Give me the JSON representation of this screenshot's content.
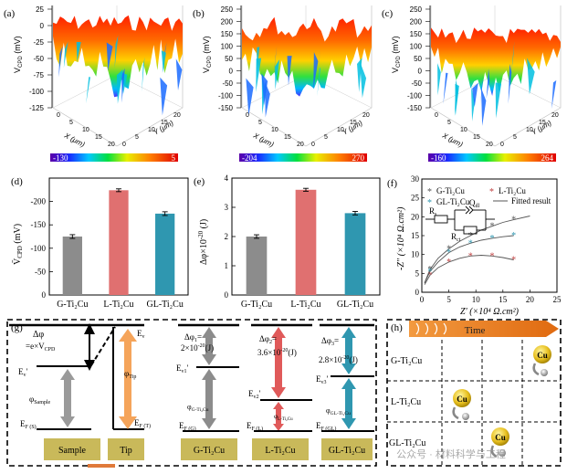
{
  "panels": {
    "a": {
      "label": "(a)",
      "zlabel": "V_CPD (mV)",
      "ticks": [
        "25",
        "0",
        "-25",
        "-50",
        "-75",
        "-100",
        "-125"
      ],
      "xlabel": "X (μm)",
      "ylabel": "Y (μm)",
      "xticks": [
        "0",
        "5",
        "10",
        "15",
        "20"
      ],
      "yticks": [
        "0",
        "5",
        "10",
        "15",
        "20"
      ],
      "cmin": "-130",
      "cmax": "5"
    },
    "b": {
      "label": "(b)",
      "zlabel": "V_CPD (mV)",
      "ticks": [
        "250",
        "200",
        "150",
        "100",
        "50",
        "0",
        "-50",
        "-100",
        "-150"
      ],
      "xlabel": "X (μm)",
      "ylabel": "Y (μm)",
      "xticks": [
        "0",
        "5",
        "10",
        "15",
        "20"
      ],
      "yticks": [
        "0",
        "5",
        "10",
        "15",
        "20"
      ],
      "cmin": "-204",
      "cmax": "270"
    },
    "c": {
      "label": "(c)",
      "zlabel": "V_CPD (mV)",
      "ticks": [
        "250",
        "200",
        "150",
        "100",
        "50",
        "0",
        "-50",
        "-100",
        "-150"
      ],
      "xlabel": "X (μm)",
      "ylabel": "Y (μm)",
      "xticks": [
        "0",
        "5",
        "10",
        "15",
        "20"
      ],
      "yticks": [
        "0",
        "5",
        "10",
        "15",
        "20"
      ],
      "cmin": "-160",
      "cmax": "264"
    },
    "g": {
      "label": "(g)",
      "dphi_top": "Δφ",
      "dphi_eq": "=e×V",
      "dphi_sub": "CPD",
      "ev": "E",
      "ev_sub": "v",
      "ev_prime": "E",
      "ev_prime_sub": "v",
      "phi_sample": "φ",
      "phi_sample_sub": "Sample",
      "phi_tip": "φ",
      "phi_tip_sub": "Tip",
      "ef_s": "E",
      "ef_s_sub": "F (S)",
      "ef_t": "E",
      "ef_t_sub": "F (T)",
      "sample": "Sample",
      "tip": "Tip",
      "g_dphi": "Δφ",
      "g_dphi_sub": "1",
      "g_dphi_val": "2×10",
      "g_ev": "E",
      "g_ev_sub": "v1",
      "g_phi": "φ",
      "g_phi_sub": "G-Ti₂Cu",
      "g_ef": "E",
      "g_ef_sub": "F (G)",
      "g_box": "G-Ti₂Cu",
      "l_dphi": "Δφ",
      "l_dphi_sub": "2",
      "l_dphi_val": "3.6×10",
      "l_ev": "E",
      "l_ev_sub": "v2",
      "l_phi": "φ",
      "l_phi_sub": "L-Ti₂Cu",
      "l_ef": "E",
      "l_ef_sub": "F (L)",
      "l_box": "L-Ti₂Cu",
      "gl_dphi": "Δφ",
      "gl_dphi_sub": "3",
      "gl_dphi_val": "2.8×10",
      "gl_ev": "E",
      "gl_ev_sub": "v3",
      "gl_phi": "φ",
      "gl_phi_sub": "GL-Ti₂Cu",
      "gl_ef": "E",
      "gl_ef_sub": "F (GL)",
      "gl_box": "GL-Ti₂Cu",
      "exp": "-20",
      "unit": "(J)"
    },
    "h": {
      "label": "(h)",
      "time": "Time",
      "rows": [
        "G-Ti₂Cu",
        "L-Ti₂Cu",
        "GL-Ti₂Cu"
      ],
      "cu": "Cu"
    },
    "f": {
      "label": "(f)",
      "ylabel": "-Z'' (×10⁴ Ω.cm²)",
      "xlabel": "Z' (×10⁴ Ω.cm²)",
      "legend": [
        "G-Ti₂Cu",
        "L-Ti₂Cu",
        "GL-Ti₂Cu",
        "Fitted result"
      ],
      "circuit": {
        "rs": "R",
        "rs_sub": "s",
        "q": "Q",
        "q_sub": "dl",
        "rct": "R",
        "rct_sub": "ct"
      }
    }
  },
  "watermark": "公众号 · 材料科学与工程",
  "chart_data": [
    {
      "type": "bar",
      "panel": "(d)",
      "categories": [
        "G-Ti₂Cu",
        "L-Ti₂Cu",
        "GL-Ti₂Cu"
      ],
      "values": [
        -125,
        -224,
        -174
      ],
      "errors": [
        4,
        3,
        4
      ],
      "colors": [
        "#8c8c8c",
        "#e07070",
        "#2f97b0"
      ],
      "ylabel": "V̄_CPD (mV)",
      "ylim": [
        0,
        -250
      ],
      "yticks": [
        "0",
        "-50",
        "-100",
        "-150",
        "-200"
      ]
    },
    {
      "type": "bar",
      "panel": "(e)",
      "categories": [
        "G-Ti₂Cu",
        "L-Ti₂Cu",
        "GL-Ti₂Cu"
      ],
      "values": [
        2.0,
        3.6,
        2.8
      ],
      "errors": [
        0.06,
        0.05,
        0.06
      ],
      "colors": [
        "#8c8c8c",
        "#e07070",
        "#2f97b0"
      ],
      "ylabel": "Δφ×10⁻²⁰ (J)",
      "ylim": [
        0,
        4
      ],
      "yticks": [
        "0",
        "1",
        "2",
        "3",
        "4"
      ]
    },
    {
      "type": "scatter",
      "panel": "(f)",
      "xlim": [
        0,
        25
      ],
      "ylim": [
        0,
        30
      ],
      "xticks": [
        "0",
        "5",
        "10",
        "15",
        "20",
        "25"
      ],
      "yticks": [
        "0",
        "5",
        "10",
        "15",
        "20",
        "25",
        "30"
      ],
      "series": [
        {
          "name": "G-Ti₂Cu",
          "color": "#555555",
          "x": [
            0.5,
            1.5,
            3,
            5,
            7,
            9,
            11,
            13,
            15,
            17,
            20
          ],
          "y": [
            2.5,
            6,
            9,
            11.5,
            13.5,
            15,
            16.5,
            17.5,
            18.5,
            19.2,
            20.2
          ]
        },
        {
          "name": "L-Ti₂Cu",
          "color": "#c04040",
          "x": [
            0.5,
            1.5,
            3,
            5,
            7,
            9,
            11,
            13,
            15,
            17
          ],
          "y": [
            2,
            4.5,
            6.5,
            8,
            9,
            9.6,
            9.8,
            9.6,
            9.2,
            8.6
          ]
        },
        {
          "name": "GL-Ti₂Cu",
          "color": "#2f97b0",
          "x": [
            0.5,
            1.5,
            3,
            5,
            7,
            9,
            11,
            13,
            15,
            17
          ],
          "y": [
            2.4,
            5.5,
            8,
            10.5,
            12,
            13,
            13.8,
            14.3,
            14.7,
            15
          ]
        }
      ]
    }
  ]
}
